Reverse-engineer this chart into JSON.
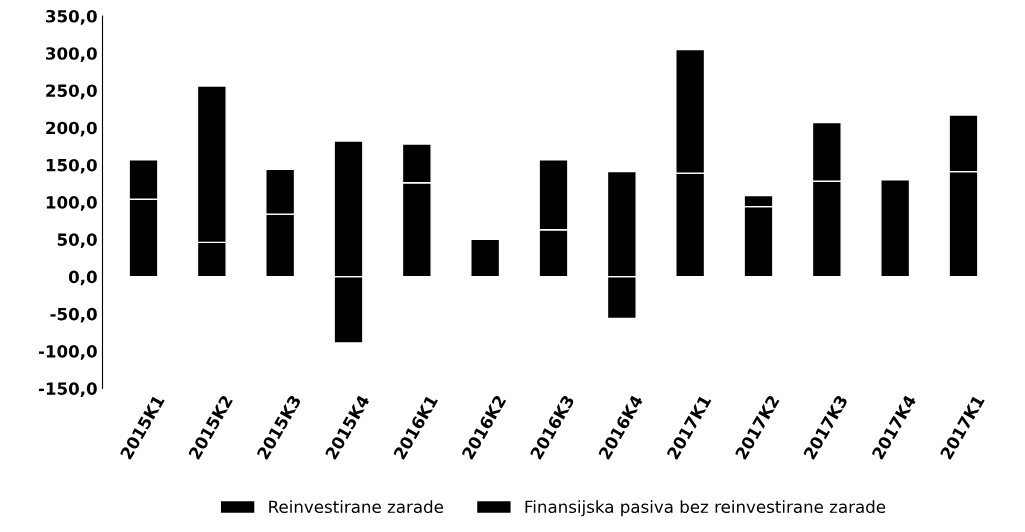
{
  "chart_data": {
    "type": "bar",
    "stacked": true,
    "categories": [
      "2015K1",
      "2015K2",
      "2015K3",
      "2015K4",
      "2016K1",
      "2016K2",
      "2016K3",
      "2016K4",
      "2017K1",
      "2017K2",
      "2017K3",
      "2017K4",
      "2017K1"
    ],
    "series": [
      {
        "name": "Reinvestirane zarade",
        "color": "#000000",
        "values": [
          104,
          46,
          84,
          -89,
          126,
          50,
          63,
          -56,
          139,
          94,
          128,
          null,
          141
        ]
      },
      {
        "name": "Finansijska pasiva bez reinvestirane zarade",
        "color": "#000000",
        "values": [
          53,
          210,
          60,
          182,
          52,
          null,
          94,
          141,
          166,
          15,
          79,
          130,
          76
        ]
      }
    ],
    "ylim": [
      -150,
      350
    ],
    "yticks": [
      {
        "value": -150,
        "label": "-150,0"
      },
      {
        "value": -100,
        "label": "-100,0"
      },
      {
        "value": -50,
        "label": "-50,0"
      },
      {
        "value": 0,
        "label": "0,0"
      },
      {
        "value": 50,
        "label": "50,0"
      },
      {
        "value": 100,
        "label": "100,0"
      },
      {
        "value": 150,
        "label": "150,0"
      },
      {
        "value": 200,
        "label": "200,0"
      },
      {
        "value": 250,
        "label": "250,0"
      },
      {
        "value": 300,
        "label": "300,0"
      },
      {
        "value": 350,
        "label": "350,0"
      }
    ],
    "grid": false,
    "legend": "bottom"
  }
}
